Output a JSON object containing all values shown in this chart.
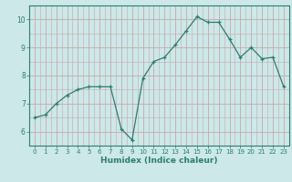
{
  "x": [
    0,
    1,
    2,
    3,
    4,
    5,
    6,
    7,
    8,
    9,
    10,
    11,
    12,
    13,
    14,
    15,
    16,
    17,
    18,
    19,
    20,
    21,
    22,
    23
  ],
  "y": [
    6.5,
    6.6,
    7.0,
    7.3,
    7.5,
    7.6,
    7.6,
    7.6,
    6.1,
    5.7,
    7.9,
    8.5,
    8.65,
    9.1,
    9.6,
    10.1,
    9.9,
    9.9,
    9.3,
    8.65,
    9.0,
    8.6,
    8.65,
    7.6
  ],
  "xlabel": "Humidex (Indice chaleur)",
  "ylim": [
    5.5,
    10.5
  ],
  "xlim": [
    -0.5,
    23.5
  ],
  "yticks": [
    6,
    7,
    8,
    9,
    10
  ],
  "xticks": [
    0,
    1,
    2,
    3,
    4,
    5,
    6,
    7,
    8,
    9,
    10,
    11,
    12,
    13,
    14,
    15,
    16,
    17,
    18,
    19,
    20,
    21,
    22,
    23
  ],
  "line_color": "#2d7d6e",
  "marker_color": "#2d7d6e",
  "bg_color": "#cce8e8",
  "grid_color": "#c8a8a8",
  "axis_color": "#2d7d6e",
  "tick_color": "#2d7d6e",
  "label_color": "#2d7d6e",
  "xlabel_fontsize": 6.5,
  "tick_fontsize": 5.5,
  "xtick_fontsize": 5.0
}
